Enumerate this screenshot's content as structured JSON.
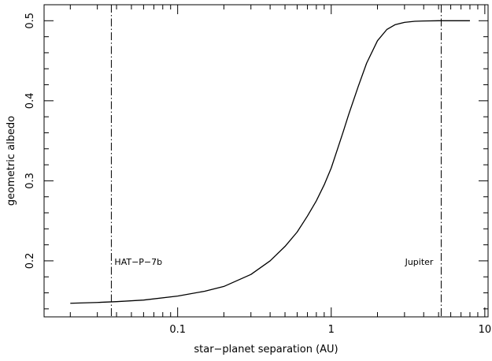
{
  "chart_data": {
    "type": "line",
    "xlabel": "star−planet separation (AU)",
    "ylabel": "geometric albedo",
    "xscale": "log",
    "xlim": [
      0.0135,
      10.5
    ],
    "ylim": [
      0.13,
      0.52
    ],
    "x_ticks": [
      {
        "value": 0.1,
        "label": "0.1"
      },
      {
        "value": 1,
        "label": "1"
      },
      {
        "value": 10,
        "label": "10"
      }
    ],
    "y_ticks": [
      {
        "value": 0.2,
        "label": "0.2"
      },
      {
        "value": 0.3,
        "label": "0.3"
      },
      {
        "value": 0.4,
        "label": "0.4"
      },
      {
        "value": 0.5,
        "label": "0.5"
      }
    ],
    "grid": false,
    "series": [
      {
        "x": [
          0.02,
          0.03,
          0.04,
          0.06,
          0.1,
          0.15,
          0.2,
          0.3,
          0.4,
          0.5,
          0.6,
          0.7,
          0.8,
          0.9,
          1.0,
          1.1,
          1.2,
          1.3,
          1.5,
          1.7,
          2.0,
          2.3,
          2.6,
          3.0,
          3.5,
          4.0,
          5.0,
          6.0,
          8.0
        ],
        "y": [
          0.147,
          0.148,
          0.149,
          0.151,
          0.156,
          0.162,
          0.168,
          0.183,
          0.2,
          0.218,
          0.236,
          0.256,
          0.275,
          0.295,
          0.316,
          0.34,
          0.362,
          0.383,
          0.418,
          0.447,
          0.475,
          0.489,
          0.495,
          0.498,
          0.4993,
          0.4997,
          0.5,
          0.5,
          0.5
        ]
      }
    ],
    "vertical_lines": [
      {
        "x": 0.037,
        "label": "HAT−P−7b",
        "label_side": "right",
        "label_y": 0.195
      },
      {
        "x": 5.2,
        "label": "Jupiter",
        "label_side": "left",
        "label_y": 0.195
      }
    ]
  }
}
